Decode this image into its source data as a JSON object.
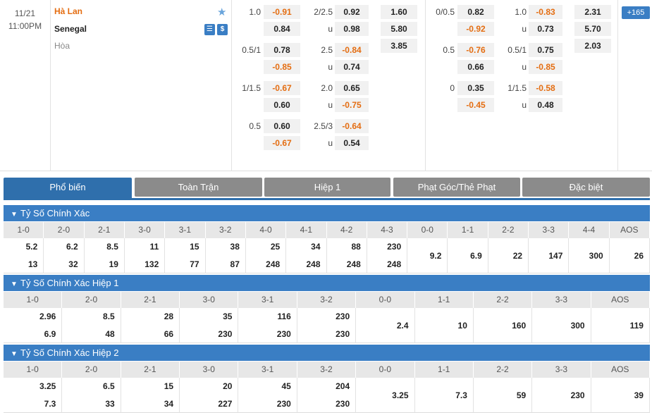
{
  "match": {
    "date": "11/21",
    "time": "11:00PM",
    "home": "Hà Lan",
    "away": "Senegal",
    "draw": "Hòa",
    "icons": [
      "star-icon",
      "stats-icon",
      "money-icon"
    ],
    "ft_rows": [
      {
        "hcap": "1.0",
        "h1": "-0.91",
        "h2": "0.84",
        "ou": "2/2.5",
        "o1": "0.92",
        "o2": "0.98",
        "x": [
          "1.60",
          "5.80",
          "3.85"
        ]
      },
      {
        "hcap": "0.5/1",
        "h1": "0.78",
        "h2": "-0.85",
        "ou": "2.5",
        "o1": "-0.84",
        "o2": "0.74"
      },
      {
        "hcap": "1/1.5",
        "h1": "-0.67",
        "h2": "0.60",
        "ou": "2.0",
        "o1": "0.65",
        "o2": "-0.75"
      },
      {
        "hcap": "0.5",
        "h1": "0.60",
        "h2": "-0.67",
        "ou": "2.5/3",
        "o1": "-0.64",
        "o2": "0.54"
      }
    ],
    "ht_rows": [
      {
        "hcap": "0/0.5",
        "h1": "0.82",
        "h2": "-0.92",
        "ou": "1.0",
        "o1": "-0.83",
        "o2": "0.73",
        "x": [
          "2.31",
          "5.70",
          "2.03"
        ]
      },
      {
        "hcap": "0.5",
        "h1": "-0.76",
        "h2": "0.66",
        "ou": "0.5/1",
        "o1": "0.75",
        "o2": "-0.85"
      },
      {
        "hcap": "0",
        "h1": "0.35",
        "h2": "-0.45",
        "ou": "1/1.5",
        "o1": "-0.58",
        "o2": "0.48"
      }
    ],
    "u_label": "u",
    "more": "165"
  },
  "tabs": [
    "Phổ biến",
    "Toàn Trận",
    "Hiệp 1",
    "Phạt Góc/Thẻ Phạt",
    "Đặc biệt"
  ],
  "sections": [
    {
      "title": "Tỷ Số Chính Xác",
      "cols": [
        "1-0",
        "2-0",
        "2-1",
        "3-0",
        "3-1",
        "3-2",
        "4-0",
        "4-1",
        "4-2",
        "4-3",
        "0-0",
        "1-1",
        "2-2",
        "3-3",
        "4-4",
        "AOS"
      ],
      "vals": [
        [
          "5.2",
          "13"
        ],
        [
          "6.2",
          "32"
        ],
        [
          "8.5",
          "19"
        ],
        [
          "11",
          "132"
        ],
        [
          "15",
          "77"
        ],
        [
          "38",
          "87"
        ],
        [
          "25",
          "248"
        ],
        [
          "34",
          "248"
        ],
        [
          "88",
          "248"
        ],
        [
          "230",
          "248"
        ],
        [
          "9.2"
        ],
        [
          "6.9"
        ],
        [
          "22"
        ],
        [
          "147"
        ],
        [
          "300"
        ],
        [
          "26"
        ]
      ]
    },
    {
      "title": "Tỷ Số Chính Xác Hiệp 1",
      "cols": [
        "1-0",
        "2-0",
        "2-1",
        "3-0",
        "3-1",
        "3-2",
        "0-0",
        "1-1",
        "2-2",
        "3-3",
        "AOS"
      ],
      "vals": [
        [
          "2.96",
          "6.9"
        ],
        [
          "8.5",
          "48"
        ],
        [
          "28",
          "66"
        ],
        [
          "35",
          "230"
        ],
        [
          "116",
          "230"
        ],
        [
          "230",
          "230"
        ],
        [
          "2.4"
        ],
        [
          "10"
        ],
        [
          "160"
        ],
        [
          "300"
        ],
        [
          "119"
        ]
      ]
    },
    {
      "title": "Tỷ Số Chính Xác Hiệp 2",
      "cols": [
        "1-0",
        "2-0",
        "2-1",
        "3-0",
        "3-1",
        "3-2",
        "0-0",
        "1-1",
        "2-2",
        "3-3",
        "AOS"
      ],
      "vals": [
        [
          "3.25",
          "7.3"
        ],
        [
          "6.5",
          "33"
        ],
        [
          "15",
          "34"
        ],
        [
          "20",
          "227"
        ],
        [
          "45",
          "230"
        ],
        [
          "204",
          "230"
        ],
        [
          "3.25"
        ],
        [
          "7.3"
        ],
        [
          "59"
        ],
        [
          "230"
        ],
        [
          "39"
        ]
      ]
    }
  ]
}
